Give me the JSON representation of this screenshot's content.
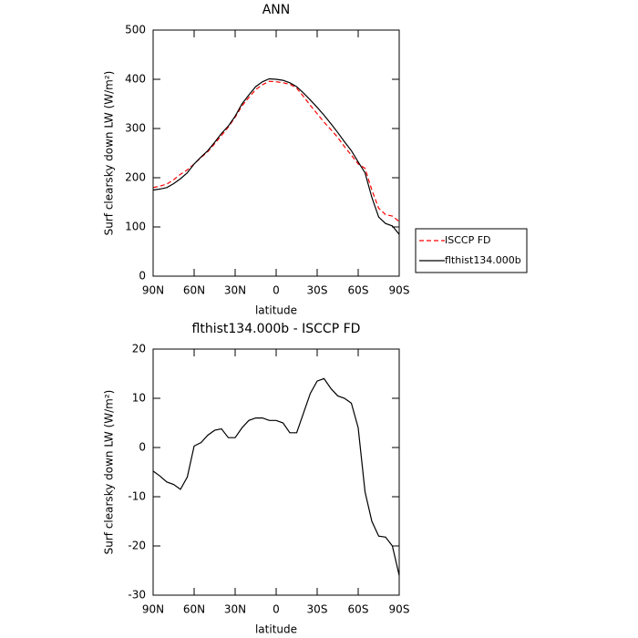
{
  "chart_data": [
    {
      "type": "line",
      "title": "ANN",
      "ylabel": "Surf clearsky down LW (W/m²)",
      "xlabel": "latitude",
      "x": [
        90,
        85,
        80,
        75,
        70,
        65,
        60,
        55,
        50,
        45,
        40,
        35,
        30,
        25,
        20,
        15,
        10,
        5,
        0,
        -5,
        -10,
        -15,
        -20,
        -25,
        -30,
        -35,
        -40,
        -45,
        -50,
        -55,
        -60,
        -65,
        -70,
        -75,
        -80,
        -85,
        -90
      ],
      "series": [
        {
          "name": "ISCCP FD",
          "color": "#ff0000",
          "dash": true,
          "values": [
            180,
            183,
            187,
            196,
            207,
            216,
            228,
            241,
            253,
            269,
            286,
            303,
            323,
            346,
            363,
            379,
            389,
            396,
            395,
            393,
            390,
            382,
            365,
            347,
            330,
            313,
            298,
            282,
            263,
            246,
            228,
            219,
            175,
            138,
            125,
            122,
            111
          ]
        },
        {
          "name": "flthist134.000b",
          "color": "#000000",
          "dash": false,
          "values": [
            175,
            177,
            180,
            188,
            198,
            210,
            228,
            242,
            255,
            272,
            290,
            305,
            325,
            350,
            368,
            385,
            395,
            401,
            400,
            398,
            393,
            385,
            372,
            358,
            343,
            327,
            310,
            292,
            273,
            255,
            232,
            210,
            160,
            120,
            107,
            102,
            85
          ]
        }
      ],
      "xlim": [
        90,
        -90
      ],
      "xticks": [
        {
          "value": 90,
          "label": "90N"
        },
        {
          "value": 60,
          "label": "60N"
        },
        {
          "value": 30,
          "label": "30N"
        },
        0,
        {
          "value": -30,
          "label": "30S"
        },
        {
          "value": -60,
          "label": "60S"
        },
        {
          "value": -90,
          "label": "90S"
        }
      ],
      "ylim": [
        0,
        500
      ],
      "yticks": [
        0,
        100,
        200,
        300,
        400,
        500
      ],
      "legend": "right"
    },
    {
      "type": "line",
      "title": "flthist134.000b - ISCCP FD",
      "ylabel": "Surf clearsky down LW (W/m²)",
      "xlabel": "latitude",
      "x": [
        90,
        85,
        80,
        75,
        70,
        65,
        60,
        55,
        50,
        45,
        40,
        35,
        30,
        25,
        20,
        15,
        10,
        5,
        0,
        -5,
        -10,
        -15,
        -20,
        -25,
        -30,
        -35,
        -40,
        -45,
        -50,
        -55,
        -60,
        -65,
        -70,
        -75,
        -80,
        -85,
        -90
      ],
      "color": "#000000",
      "values": [
        -4.8,
        -5.8,
        -7,
        -7.5,
        -8.5,
        -6,
        0.3,
        1,
        2.5,
        3.5,
        3.8,
        2,
        2,
        4,
        5.5,
        6,
        6,
        5.5,
        5.5,
        5,
        3,
        3,
        7,
        11,
        13.5,
        14,
        12,
        10.5,
        10,
        9,
        4,
        -9,
        -15,
        -18,
        -18.2,
        -20,
        -26
      ],
      "xlim": [
        90,
        -90
      ],
      "xticks": [
        {
          "value": 90,
          "label": "90N"
        },
        {
          "value": 60,
          "label": "60N"
        },
        {
          "value": 30,
          "label": "30N"
        },
        0,
        {
          "value": -30,
          "label": "30S"
        },
        {
          "value": -60,
          "label": "60S"
        },
        {
          "value": -90,
          "label": "90S"
        }
      ],
      "ylim": [
        -30,
        20
      ],
      "yticks": [
        -30,
        -20,
        -10,
        0,
        10,
        20
      ]
    }
  ]
}
